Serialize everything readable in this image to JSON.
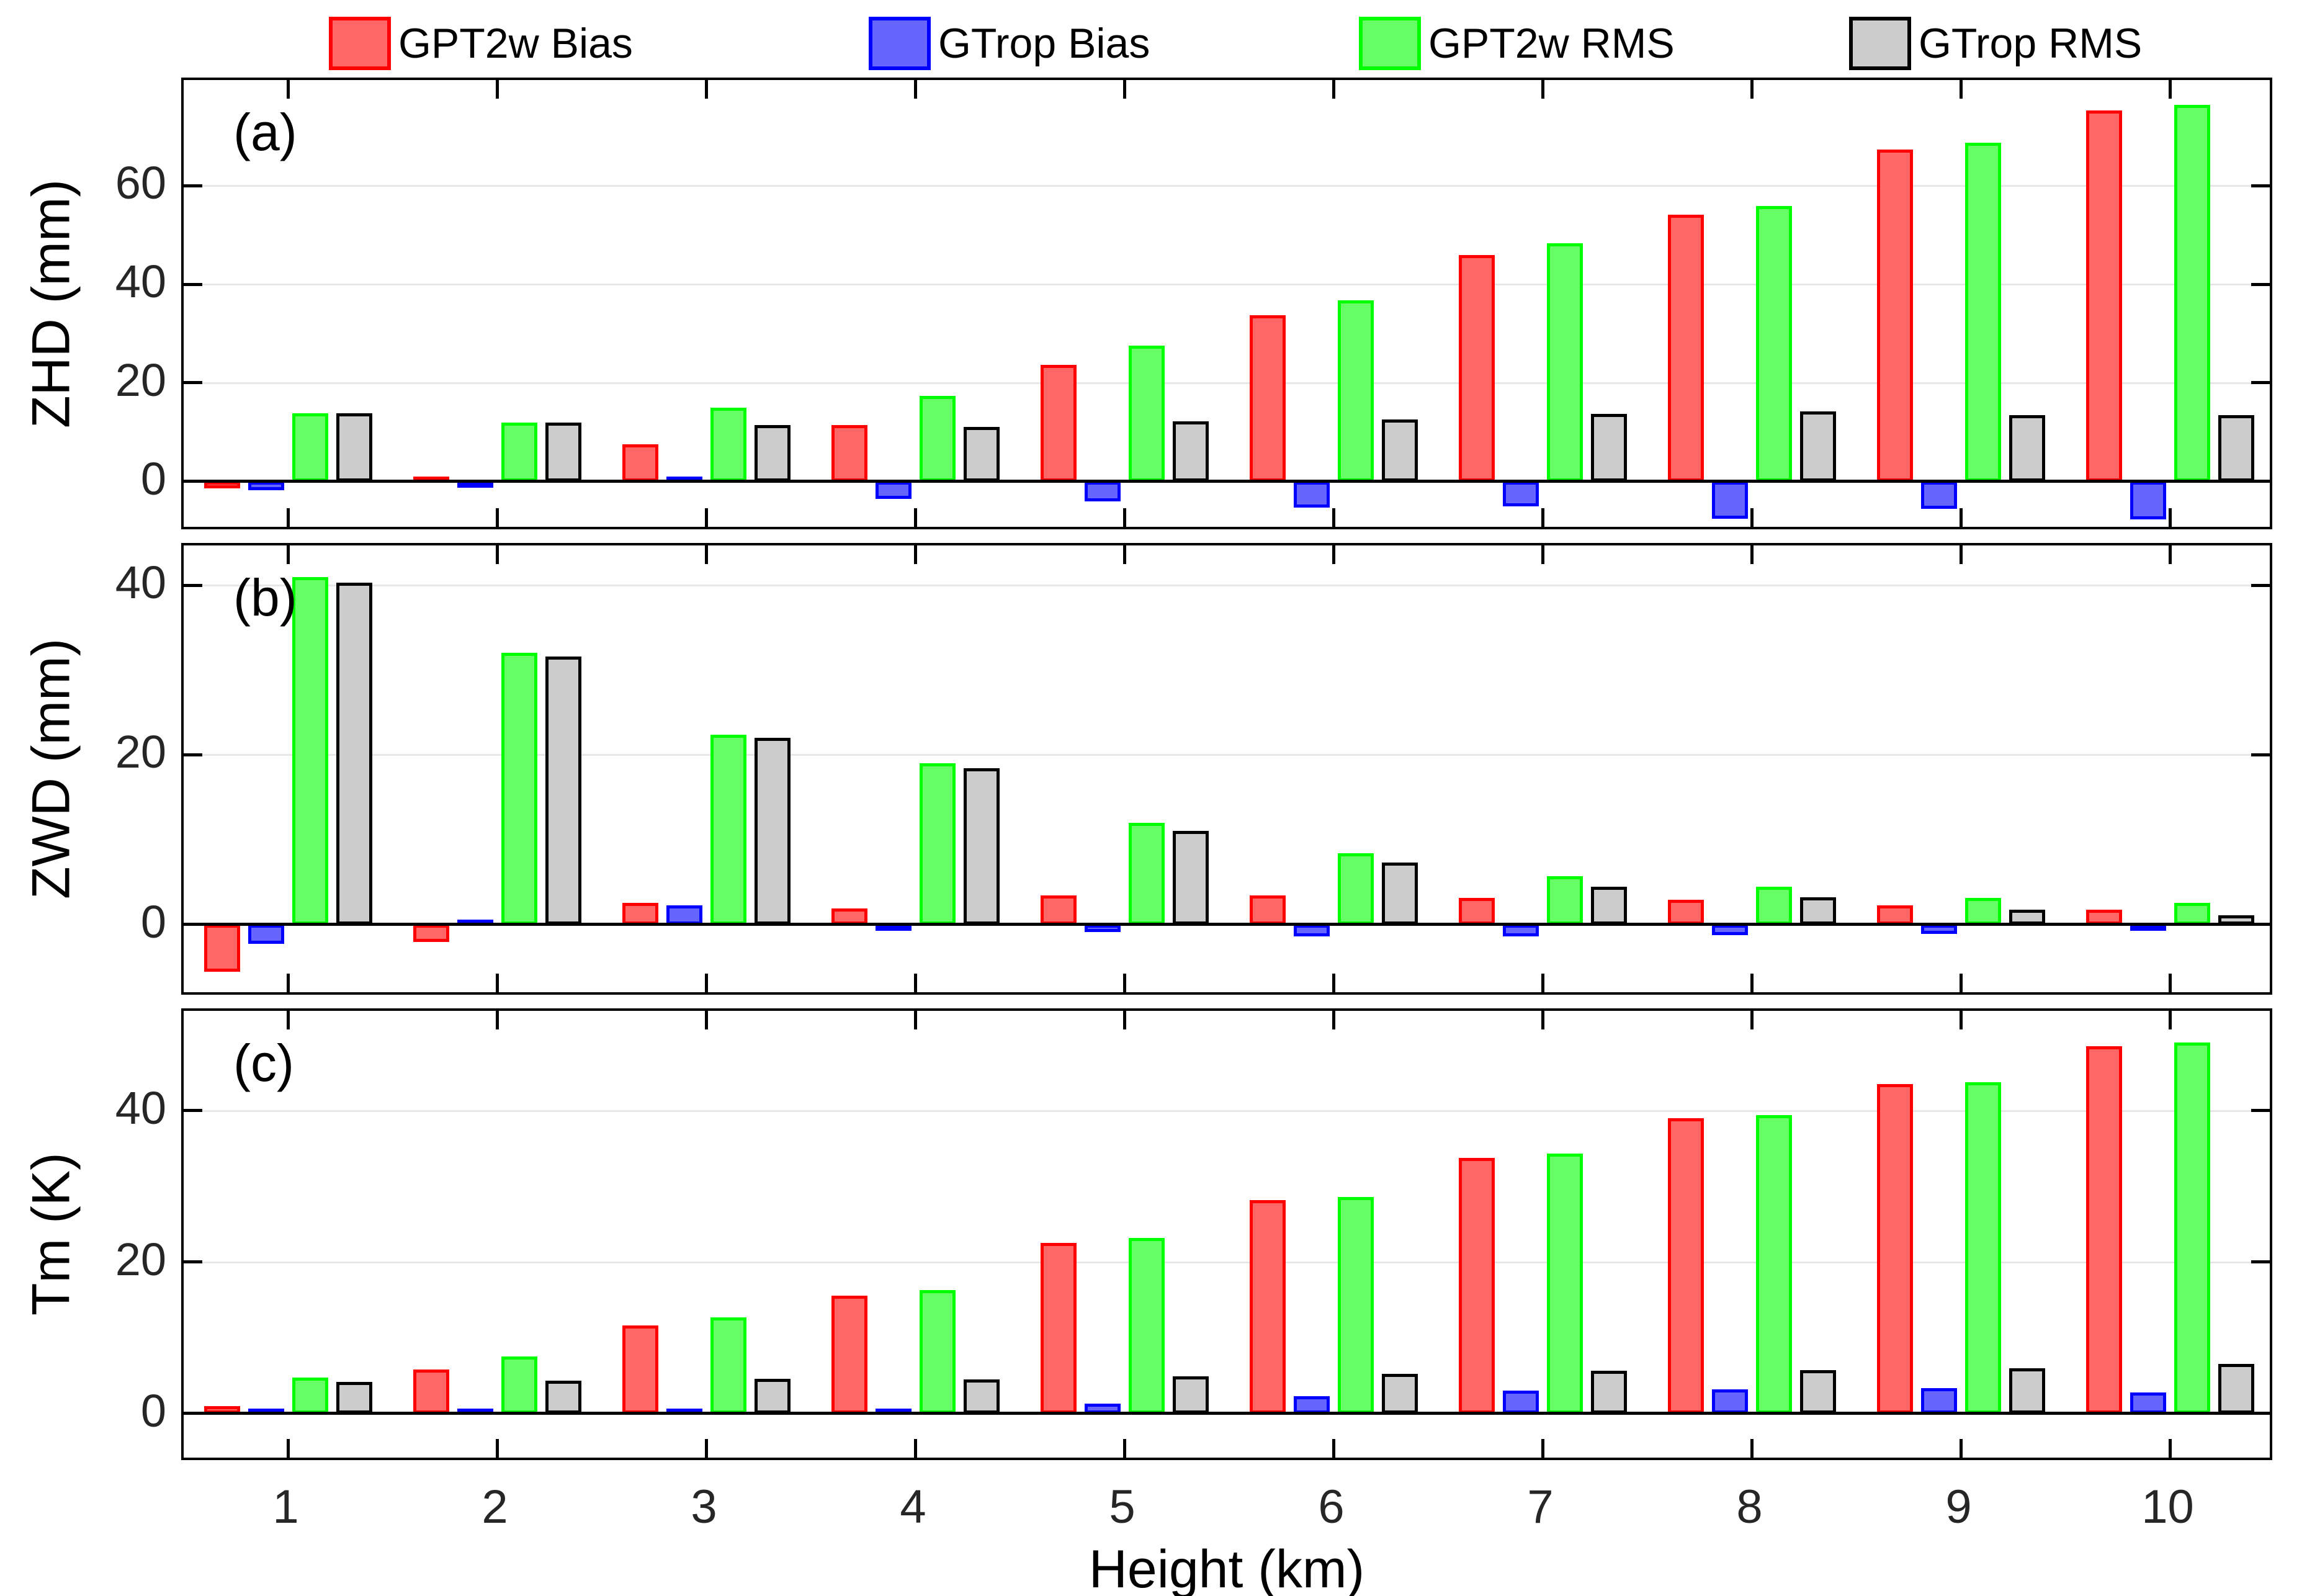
{
  "figure": {
    "legend": {
      "items": [
        {
          "label": "GPT2w Bias",
          "fill": "#ff6666",
          "edge": "#ff0000"
        },
        {
          "label": "GTrop Bias",
          "fill": "#6666ff",
          "edge": "#0000ff"
        },
        {
          "label": "GPT2w RMS",
          "fill": "#66ff66",
          "edge": "#00ff00"
        },
        {
          "label": "GTrop RMS",
          "fill": "#cccccc",
          "edge": "#000000"
        }
      ]
    },
    "x_axis": {
      "label": "Height (km)"
    },
    "colors": {
      "grid": "#e7e7e7",
      "axis": "#000000",
      "tick_label": "#262626"
    }
  },
  "chart_data": [
    {
      "type": "bar",
      "panel_label": "(a)",
      "ylabel": "ZHD (mm)",
      "xlabel": "Height (km)",
      "categories": [
        "1",
        "2",
        "3",
        "4",
        "5",
        "6",
        "7",
        "8",
        "9",
        "10"
      ],
      "series": [
        {
          "name": "GPT2w Bias",
          "fill": "#ff6666",
          "edge": "#ff0000",
          "values": [
            -1.4,
            0.8,
            7.5,
            11.5,
            23.7,
            33.7,
            45.9,
            54.1,
            67.3,
            75.2
          ]
        },
        {
          "name": "GTrop Bias",
          "fill": "#6666ff",
          "edge": "#0000ff",
          "values": [
            -1.8,
            -1.1,
            0.4,
            -3.5,
            -4.0,
            -5.3,
            -5.1,
            -7.6,
            -5.6,
            -7.7
          ]
        },
        {
          "name": "GPT2w RMS",
          "fill": "#66ff66",
          "edge": "#00ff00",
          "values": [
            13.8,
            12.0,
            15.0,
            17.3,
            27.5,
            36.7,
            48.3,
            55.8,
            68.7,
            76.4
          ]
        },
        {
          "name": "GTrop RMS",
          "fill": "#cccccc",
          "edge": "#000000",
          "values": [
            13.8,
            11.9,
            11.5,
            11.1,
            12.2,
            12.6,
            13.7,
            14.2,
            13.5,
            13.4
          ]
        }
      ],
      "ylim": [
        -10.2,
        81.4
      ],
      "yticks": [
        0,
        20,
        40,
        60
      ],
      "gridlines": [
        20,
        40,
        60
      ],
      "grid": "horizontal",
      "legend_position": "top"
    },
    {
      "type": "bar",
      "panel_label": "(b)",
      "ylabel": "ZWD (mm)",
      "xlabel": "Height (km)",
      "categories": [
        "1",
        "2",
        "3",
        "4",
        "5",
        "6",
        "7",
        "8",
        "9",
        "10"
      ],
      "series": [
        {
          "name": "GPT2w Bias",
          "fill": "#ff6666",
          "edge": "#ff0000",
          "values": [
            -5.6,
            -2.1,
            2.5,
            1.9,
            3.4,
            3.4,
            3.1,
            2.9,
            2.2,
            1.7
          ]
        },
        {
          "name": "GTrop Bias",
          "fill": "#6666ff",
          "edge": "#0000ff",
          "values": [
            -2.3,
            0.4,
            2.2,
            -0.7,
            -0.9,
            -1.4,
            -1.4,
            -1.3,
            -1.1,
            -0.8
          ]
        },
        {
          "name": "GPT2w RMS",
          "fill": "#66ff66",
          "edge": "#00ff00",
          "values": [
            41.0,
            32.0,
            22.4,
            19.0,
            12.0,
            8.4,
            5.7,
            4.4,
            3.1,
            2.5
          ]
        },
        {
          "name": "GTrop RMS",
          "fill": "#cccccc",
          "edge": "#000000",
          "values": [
            40.3,
            31.6,
            22.0,
            18.4,
            11.0,
            7.3,
            4.4,
            3.2,
            1.7,
            1.1
          ]
        }
      ],
      "ylim": [
        -8.6,
        44.7
      ],
      "yticks": [
        0,
        20,
        40
      ],
      "gridlines": [
        20,
        40
      ],
      "grid": "horizontal",
      "legend_position": "none"
    },
    {
      "type": "bar",
      "panel_label": "(c)",
      "ylabel": "Tm (K)",
      "xlabel": "Height (km)",
      "categories": [
        "1",
        "2",
        "3",
        "4",
        "5",
        "6",
        "7",
        "8",
        "9",
        "10"
      ],
      "series": [
        {
          "name": "GPT2w Bias",
          "fill": "#ff6666",
          "edge": "#ff0000",
          "values": [
            1.0,
            5.8,
            11.6,
            15.6,
            22.5,
            28.2,
            33.8,
            39.0,
            43.5,
            48.5
          ]
        },
        {
          "name": "GTrop Bias",
          "fill": "#6666ff",
          "edge": "#0000ff",
          "values": [
            0.2,
            0.2,
            0.6,
            0.5,
            1.3,
            2.3,
            3.0,
            3.2,
            3.3,
            2.8
          ]
        },
        {
          "name": "GPT2w RMS",
          "fill": "#66ff66",
          "edge": "#00ff00",
          "values": [
            4.7,
            7.5,
            12.7,
            16.3,
            23.2,
            28.6,
            34.3,
            39.4,
            43.8,
            49.0
          ]
        },
        {
          "name": "GTrop RMS",
          "fill": "#cccccc",
          "edge": "#000000",
          "values": [
            4.2,
            4.3,
            4.6,
            4.5,
            4.9,
            5.2,
            5.6,
            5.7,
            6.0,
            6.5
          ]
        }
      ],
      "ylim": [
        -6.5,
        53.2
      ],
      "yticks": [
        0,
        20,
        40
      ],
      "gridlines": [
        20,
        40
      ],
      "grid": "horizontal",
      "legend_position": "none"
    }
  ]
}
